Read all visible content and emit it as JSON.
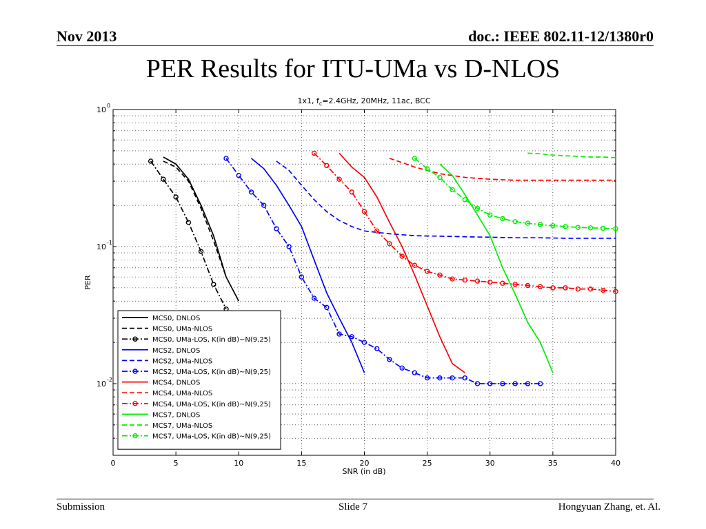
{
  "header": {
    "date": "Nov 2013",
    "doc": "doc.: IEEE 802.11-12/1380r0"
  },
  "slide_title": "PER Results for ITU-UMa vs D-NLOS",
  "footer": {
    "left": "Submission",
    "center": "Slide 7",
    "right": "Hongyuan Zhang, et. Al."
  },
  "chart_data": {
    "type": "line",
    "title": "1x1, f_c=2.4GHz, 20MHz, 11ac, BCC",
    "xlabel": "SNR (in dB)",
    "ylabel": "PER",
    "xlim": [
      0,
      40
    ],
    "ylim": [
      0.003,
      1
    ],
    "yscale": "log",
    "xticks": [
      0,
      5,
      10,
      15,
      20,
      25,
      30,
      35,
      40
    ],
    "yticks": [
      {
        "value": 1,
        "base": "10",
        "exp": "0"
      },
      {
        "value": 0.1,
        "base": "10",
        "exp": "-1"
      },
      {
        "value": 0.01,
        "base": "10",
        "exp": "-2"
      }
    ],
    "grid": true,
    "legend_position": "bottom-left",
    "series": [
      {
        "name": "MCS0, DNLOS",
        "color": "#000000",
        "style": "solid",
        "marker": false,
        "x": [
          4,
          5,
          6,
          7,
          8,
          9,
          10
        ],
        "y": [
          0.45,
          0.4,
          0.31,
          0.2,
          0.12,
          0.06,
          0.04
        ]
      },
      {
        "name": "MCS0, UMa-NLOS",
        "color": "#000000",
        "style": "dashed",
        "marker": false,
        "x": [
          4,
          5,
          6,
          7,
          8,
          9
        ],
        "y": [
          0.42,
          0.38,
          0.3,
          0.19,
          0.11,
          0.06
        ]
      },
      {
        "name": "MCS0, UMa-LOS, K(in dB)~N(9,25)",
        "color": "#000000",
        "style": "dashdot",
        "marker": true,
        "x": [
          3,
          4,
          5,
          6,
          7,
          8,
          9
        ],
        "y": [
          0.42,
          0.31,
          0.23,
          0.15,
          0.092,
          0.053,
          0.035
        ]
      },
      {
        "name": "MCS2, DNLOS",
        "color": "#0000ff",
        "style": "solid",
        "marker": false,
        "x": [
          11,
          12,
          13,
          14,
          15,
          16,
          17,
          18,
          19,
          20
        ],
        "y": [
          0.44,
          0.37,
          0.28,
          0.2,
          0.14,
          0.08,
          0.046,
          0.03,
          0.02,
          0.012
        ]
      },
      {
        "name": "MCS2, UMa-NLOS",
        "color": "#0000ff",
        "style": "dashed",
        "marker": false,
        "x": [
          13,
          14,
          15,
          16,
          17,
          18,
          19,
          20,
          22,
          24,
          26,
          28,
          30,
          32,
          34,
          36,
          38,
          40
        ],
        "y": [
          0.42,
          0.36,
          0.28,
          0.22,
          0.18,
          0.155,
          0.14,
          0.13,
          0.124,
          0.12,
          0.119,
          0.118,
          0.117,
          0.116,
          0.116,
          0.115,
          0.115,
          0.115
        ]
      },
      {
        "name": "MCS2, UMa-LOS, K(in dB)~N(9,25)",
        "color": "#0000ff",
        "style": "dashdot",
        "marker": true,
        "x": [
          9,
          10,
          11,
          12,
          13,
          14,
          15,
          16,
          17,
          18,
          19,
          20,
          21,
          22,
          23,
          24,
          25,
          26,
          27,
          28,
          29,
          30,
          31,
          32,
          33,
          34
        ],
        "y": [
          0.44,
          0.33,
          0.25,
          0.2,
          0.135,
          0.1,
          0.06,
          0.042,
          0.036,
          0.023,
          0.022,
          0.02,
          0.018,
          0.015,
          0.013,
          0.012,
          0.011,
          0.011,
          0.011,
          0.011,
          0.01,
          0.01,
          0.01,
          0.01,
          0.01,
          0.01
        ]
      },
      {
        "name": "MCS4, DNLOS",
        "color": "#ff0000",
        "style": "solid",
        "marker": false,
        "x": [
          18,
          19,
          20,
          21,
          22,
          23,
          24,
          25,
          26,
          27,
          28
        ],
        "y": [
          0.48,
          0.38,
          0.32,
          0.23,
          0.15,
          0.1,
          0.062,
          0.037,
          0.022,
          0.014,
          0.012
        ]
      },
      {
        "name": "MCS4, UMa-NLOS",
        "color": "#ff0000",
        "style": "dashed",
        "marker": false,
        "x": [
          22,
          23,
          24,
          25,
          26,
          27,
          28,
          30,
          32,
          34,
          36,
          38,
          40
        ],
        "y": [
          0.44,
          0.41,
          0.38,
          0.36,
          0.34,
          0.33,
          0.32,
          0.31,
          0.305,
          0.305,
          0.305,
          0.305,
          0.305
        ]
      },
      {
        "name": "MCS4, UMa-LOS, K(in dB)~N(9,25)",
        "color": "#ff0000",
        "style": "dashdot",
        "marker": true,
        "x": [
          16,
          17,
          18,
          19,
          20,
          21,
          22,
          23,
          24,
          25,
          26,
          27,
          28,
          29,
          30,
          31,
          32,
          33,
          34,
          35,
          36,
          37,
          38,
          39,
          40
        ],
        "y": [
          0.48,
          0.39,
          0.31,
          0.25,
          0.18,
          0.13,
          0.105,
          0.085,
          0.073,
          0.066,
          0.062,
          0.058,
          0.057,
          0.056,
          0.055,
          0.054,
          0.053,
          0.052,
          0.051,
          0.05,
          0.05,
          0.049,
          0.049,
          0.048,
          0.047
        ]
      },
      {
        "name": "MCS7, DNLOS",
        "color": "#00ee00",
        "style": "solid",
        "marker": false,
        "x": [
          26,
          27,
          28,
          29,
          30,
          31,
          32,
          33,
          34,
          35
        ],
        "y": [
          0.4,
          0.33,
          0.24,
          0.17,
          0.12,
          0.07,
          0.045,
          0.028,
          0.02,
          0.012
        ]
      },
      {
        "name": "MCS7, UMa-NLOS",
        "color": "#00ee00",
        "style": "dashed",
        "marker": false,
        "x": [
          33,
          34,
          35,
          36,
          37,
          38,
          39,
          40
        ],
        "y": [
          0.48,
          0.475,
          0.465,
          0.46,
          0.455,
          0.45,
          0.45,
          0.445
        ]
      },
      {
        "name": "MCS7, UMa-LOS, K(in dB)~N(9,25)",
        "color": "#00ee00",
        "style": "dashdot",
        "marker": true,
        "x": [
          24,
          25,
          26,
          27,
          28,
          29,
          30,
          31,
          32,
          33,
          34,
          35,
          36,
          37,
          38,
          39,
          40
        ],
        "y": [
          0.44,
          0.37,
          0.32,
          0.26,
          0.22,
          0.19,
          0.17,
          0.16,
          0.152,
          0.148,
          0.145,
          0.142,
          0.14,
          0.138,
          0.137,
          0.136,
          0.135
        ]
      }
    ]
  }
}
